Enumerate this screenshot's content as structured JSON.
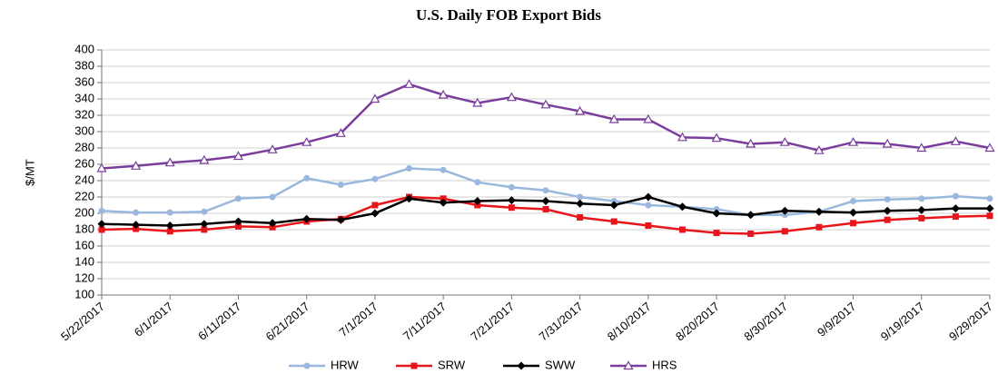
{
  "chart_data": {
    "type": "line",
    "title": "U.S. Daily FOB Export Bids",
    "y_label": "$/MT",
    "x": [
      "5/22/2017",
      "5/27/2017",
      "6/1/2017",
      "6/6/2017",
      "6/11/2017",
      "6/16/2017",
      "6/21/2017",
      "6/26/2017",
      "7/1/2017",
      "7/6/2017",
      "7/11/2017",
      "7/16/2017",
      "7/21/2017",
      "7/26/2017",
      "7/31/2017",
      "8/5/2017",
      "8/10/2017",
      "8/15/2017",
      "8/20/2017",
      "8/25/2017",
      "8/30/2017",
      "9/4/2017",
      "9/9/2017",
      "9/14/2017",
      "9/19/2017",
      "9/24/2017",
      "9/29/2017"
    ],
    "series": [
      {
        "name": "HRW",
        "color": "#9ab8dd",
        "marker": "circle",
        "values": [
          203,
          201,
          201,
          202,
          218,
          220,
          243,
          235,
          242,
          255,
          253,
          238,
          232,
          228,
          220,
          215,
          210,
          208,
          205,
          198,
          198,
          202,
          215,
          217,
          218,
          221,
          218
        ]
      },
      {
        "name": "SRW",
        "color": "#e8161b",
        "marker": "square",
        "values": [
          180,
          181,
          178,
          180,
          184,
          183,
          190,
          193,
          210,
          220,
          218,
          210,
          207,
          205,
          195,
          190,
          185,
          180,
          176,
          175,
          178,
          183,
          188,
          192,
          194,
          196,
          197
        ]
      },
      {
        "name": "SWW",
        "color": "#000000",
        "marker": "diamond",
        "values": [
          187,
          186,
          185,
          187,
          190,
          188,
          193,
          192,
          200,
          218,
          213,
          215,
          216,
          215,
          212,
          210,
          220,
          208,
          200,
          198,
          203,
          202,
          201,
          203,
          204,
          206,
          206
        ]
      },
      {
        "name": "HRS",
        "color": "#7a3d9c",
        "marker": "triangle",
        "values": [
          255,
          258,
          262,
          265,
          270,
          278,
          287,
          298,
          340,
          358,
          345,
          335,
          342,
          333,
          325,
          315,
          315,
          293,
          292,
          285,
          287,
          277,
          287,
          285,
          280,
          288,
          280
        ]
      }
    ],
    "xticks": [
      "5/22/2017",
      "6/1/2017",
      "6/11/2017",
      "6/21/2017",
      "7/1/2017",
      "7/11/2017",
      "7/21/2017",
      "7/31/2017",
      "8/10/2017",
      "8/20/2017",
      "8/30/2017",
      "9/9/2017",
      "9/19/2017",
      "9/29/2017"
    ],
    "ylim": [
      100,
      400
    ],
    "yticks": [
      100,
      120,
      140,
      160,
      180,
      200,
      220,
      240,
      260,
      280,
      300,
      320,
      340,
      360,
      380,
      400
    ],
    "grid": true,
    "legend": "bottom"
  }
}
